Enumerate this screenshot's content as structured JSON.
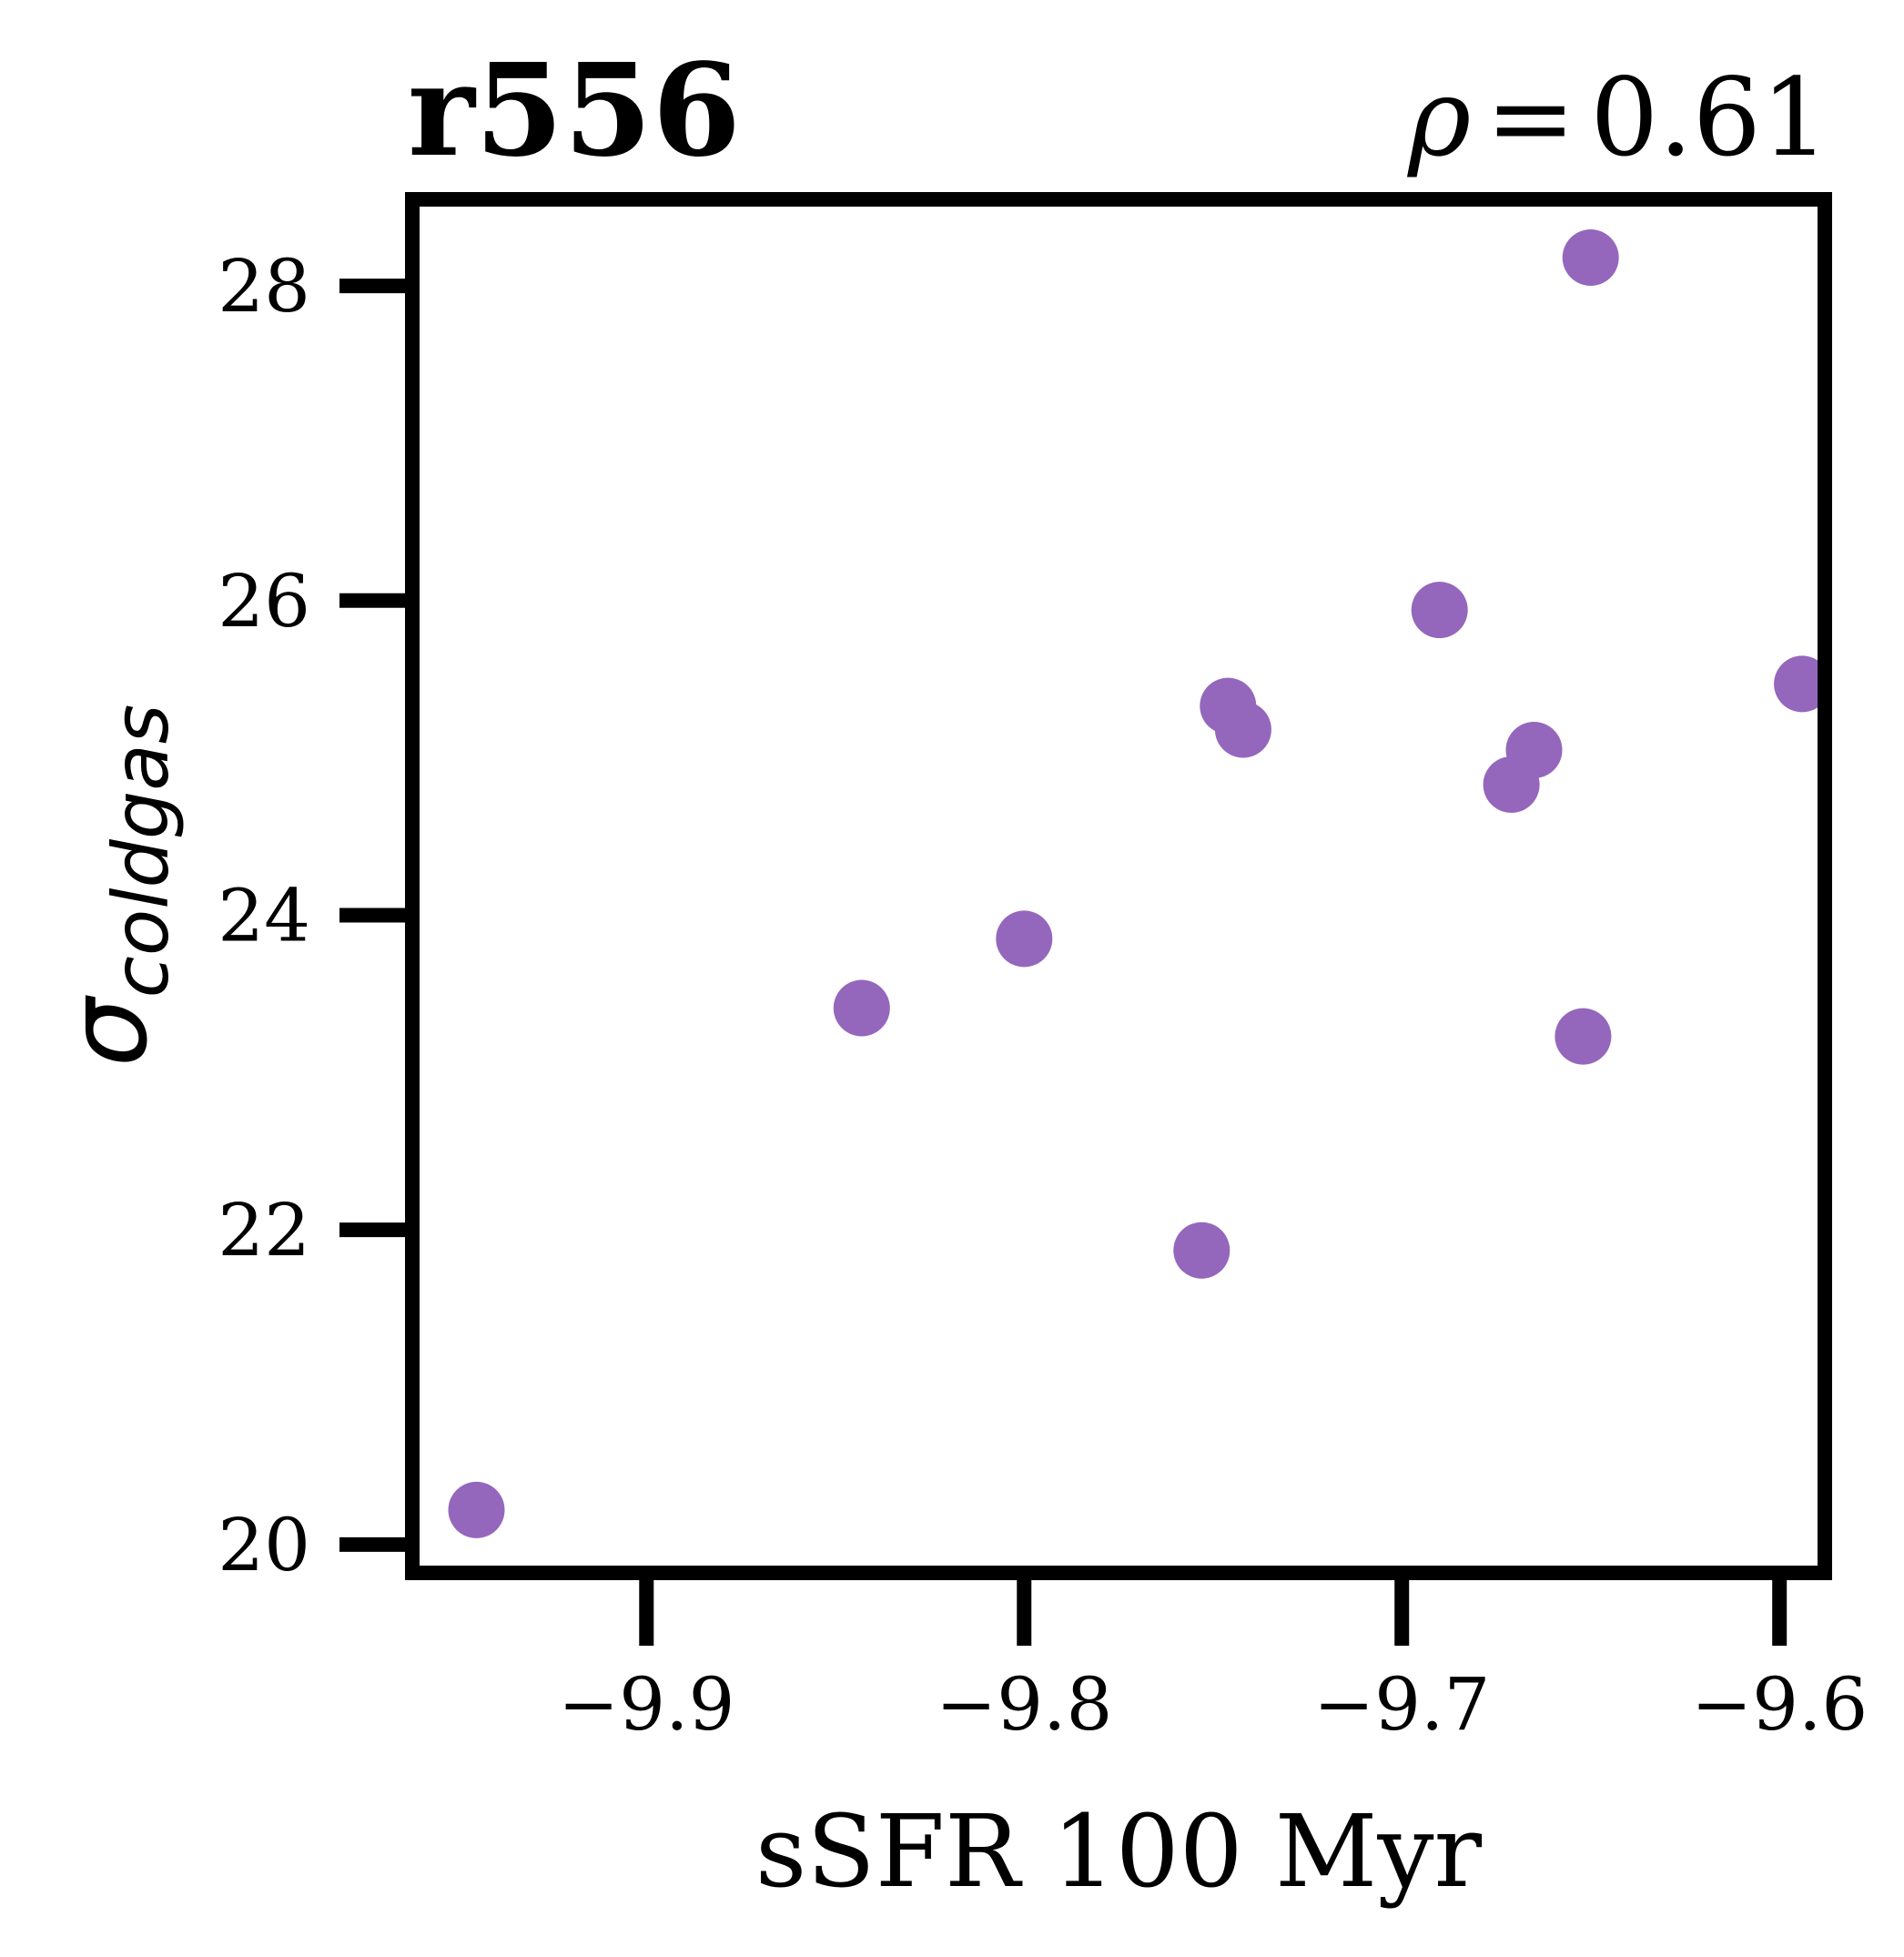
{
  "chart_data": {
    "type": "scatter",
    "title": "r556",
    "annotation": {
      "symbol": "ρ",
      "equals": "=",
      "value": "0.61"
    },
    "xlabel": "sSFR 100 Myr",
    "ylabel": {
      "symbol": "σ",
      "subscript": "coldgas"
    },
    "xlim": [
      -9.962,
      -9.588
    ],
    "ylim": [
      19.82,
      28.55
    ],
    "xticks": [
      -9.9,
      -9.8,
      -9.7,
      -9.6
    ],
    "xtick_labels": [
      "−9.9",
      "−9.8",
      "−9.7",
      "−9.6"
    ],
    "yticks": [
      20,
      22,
      24,
      26,
      28
    ],
    "ytick_labels": [
      "20",
      "22",
      "24",
      "26",
      "28"
    ],
    "grid": false,
    "marker_color": "#9467bd",
    "points": [
      {
        "x": -9.945,
        "y": 20.22
      },
      {
        "x": -9.843,
        "y": 23.41
      },
      {
        "x": -9.8,
        "y": 23.85
      },
      {
        "x": -9.753,
        "y": 21.87
      },
      {
        "x": -9.746,
        "y": 25.33
      },
      {
        "x": -9.742,
        "y": 25.18
      },
      {
        "x": -9.69,
        "y": 25.94
      },
      {
        "x": -9.671,
        "y": 24.83
      },
      {
        "x": -9.665,
        "y": 25.05
      },
      {
        "x": -9.652,
        "y": 23.23
      },
      {
        "x": -9.65,
        "y": 28.18
      },
      {
        "x": -9.594,
        "y": 25.47
      }
    ]
  }
}
